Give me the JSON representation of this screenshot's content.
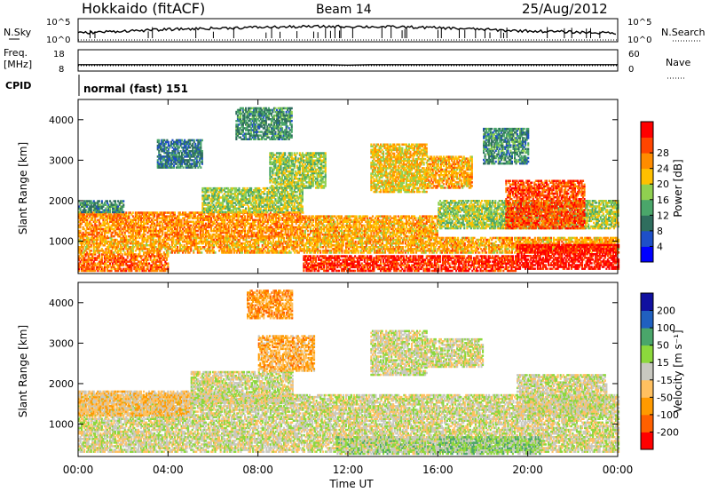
{
  "header": {
    "station": "Hokkaido (fitACF)",
    "beam": "Beam 14",
    "date": "25/Aug/2012"
  },
  "strips": {
    "nsky_label": "N.Sky",
    "nsearch_label": "N.Search",
    "nsky_ticks": [
      "10^5",
      "10^0"
    ],
    "nsearch_ticks": [
      "10^5",
      "10^0"
    ],
    "freq_label_1": "Freq.",
    "freq_label_2": "[MHz]",
    "freq_ticks": [
      "18",
      "8"
    ],
    "nave_label": "Nave",
    "nave_ticks": [
      "60",
      "0"
    ],
    "cpid_label": "CPID",
    "cpid_value": "normal (fast) 151"
  },
  "colors": {
    "power": [
      "#0000ff",
      "#1e4fc8",
      "#2f6e5e",
      "#4aa66a",
      "#90d050",
      "#ffc000",
      "#ff8c00",
      "#ff4500",
      "#ff0000"
    ],
    "velocity": [
      "#ff0000",
      "#ff6000",
      "#ff9a00",
      "#ffc060",
      "#c8c8c0",
      "#8cd83c",
      "#4aa66a",
      "#2060c0",
      "#1010a0"
    ]
  },
  "chart_data": [
    {
      "type": "heatmap",
      "name": "power",
      "xlabel": "Time UT",
      "ylabel": "Slant Range [km]",
      "xlim": [
        0,
        24
      ],
      "ylim": [
        200,
        4500
      ],
      "x_ticks": [
        "00:00",
        "04:00",
        "08:00",
        "12:00",
        "16:00",
        "20:00",
        "00:00"
      ],
      "y_ticks": [
        "1000",
        "2000",
        "3000",
        "4000"
      ],
      "colorbar_label": "Power [dB]",
      "colorbar_ticks": [
        "4",
        "8",
        "12",
        "16",
        "20",
        "24",
        "28"
      ],
      "regions": [
        {
          "t0": 0.0,
          "t1": 4.0,
          "r0": 250,
          "r1": 700,
          "level": 6.5
        },
        {
          "t0": 0.0,
          "t1": 24.0,
          "r0": 700,
          "r1": 1100,
          "level": 5.5
        },
        {
          "t0": 0.0,
          "t1": 10.0,
          "r0": 1100,
          "r1": 1700,
          "level": 6.0
        },
        {
          "t0": 10.0,
          "t1": 19.5,
          "r0": 250,
          "r1": 650,
          "level": 7.5
        },
        {
          "t0": 10.0,
          "t1": 16.0,
          "r0": 1100,
          "r1": 1600,
          "level": 5.5
        },
        {
          "t0": 16.0,
          "t1": 24.0,
          "r0": 1300,
          "r1": 2000,
          "level": 4.0
        },
        {
          "t0": 19.5,
          "t1": 24.0,
          "r0": 300,
          "r1": 900,
          "level": 8.0
        },
        {
          "t0": 0.0,
          "t1": 2.0,
          "r0": 1700,
          "r1": 2000,
          "level": 2.5
        },
        {
          "t0": 5.5,
          "t1": 10.0,
          "r0": 1700,
          "r1": 2300,
          "level": 4.0
        },
        {
          "t0": 8.5,
          "t1": 11.0,
          "r0": 2300,
          "r1": 3200,
          "level": 4.0
        },
        {
          "t0": 7.0,
          "t1": 9.5,
          "r0": 3500,
          "r1": 4300,
          "level": 2.5
        },
        {
          "t0": 13.0,
          "t1": 15.5,
          "r0": 2200,
          "r1": 3400,
          "level": 5.0
        },
        {
          "t0": 15.5,
          "t1": 17.5,
          "r0": 2300,
          "r1": 3100,
          "level": 5.5
        },
        {
          "t0": 19.0,
          "t1": 22.5,
          "r0": 1300,
          "r1": 2500,
          "level": 7.0
        },
        {
          "t0": 3.5,
          "t1": 5.5,
          "r0": 2800,
          "r1": 3500,
          "level": 2.0
        },
        {
          "t0": 18.0,
          "t1": 20.0,
          "r0": 2900,
          "r1": 3800,
          "level": 2.5
        }
      ]
    },
    {
      "type": "heatmap",
      "name": "velocity",
      "xlabel": "Time UT",
      "ylabel": "Slant Range [km]",
      "xlim": [
        0,
        24
      ],
      "ylim": [
        200,
        4500
      ],
      "x_ticks": [
        "00:00",
        "04:00",
        "08:00",
        "12:00",
        "16:00",
        "20:00",
        "00:00"
      ],
      "y_ticks": [
        "1000",
        "2000",
        "3000",
        "4000"
      ],
      "colorbar_label": "Velocity [m s⁻¹]",
      "colorbar_ticks": [
        "200",
        "100",
        "50",
        "15",
        "-15",
        "-50",
        "-100",
        "-200"
      ],
      "regions": [
        {
          "t0": 0.0,
          "t1": 24.0,
          "r0": 300,
          "r1": 1700,
          "level": 4.0
        },
        {
          "t0": 0.0,
          "t1": 5.0,
          "r0": 1200,
          "r1": 1800,
          "level": 3.0
        },
        {
          "t0": 5.0,
          "t1": 9.5,
          "r0": 1500,
          "r1": 2300,
          "level": 4.0
        },
        {
          "t0": 8.0,
          "t1": 10.5,
          "r0": 2300,
          "r1": 3200,
          "level": 2.5
        },
        {
          "t0": 7.5,
          "t1": 9.5,
          "r0": 3600,
          "r1": 4300,
          "level": 2.0
        },
        {
          "t0": 13.0,
          "t1": 15.5,
          "r0": 2200,
          "r1": 3300,
          "level": 4.0
        },
        {
          "t0": 15.5,
          "t1": 18.0,
          "r0": 2400,
          "r1": 3100,
          "level": 4.0
        },
        {
          "t0": 16.0,
          "t1": 20.5,
          "r0": 250,
          "r1": 700,
          "level": 5.0
        },
        {
          "t0": 19.5,
          "t1": 23.5,
          "r0": 1200,
          "r1": 2200,
          "level": 4.0
        },
        {
          "t0": 11.5,
          "t1": 16.0,
          "r0": 250,
          "r1": 700,
          "level": 4.5
        }
      ]
    }
  ],
  "strip_series": {
    "nsky_nsearch": [
      0.35,
      0.45,
      0.55,
      0.6,
      0.7,
      0.75,
      0.8,
      0.85,
      0.9,
      0.92,
      0.95,
      0.97,
      0.97,
      0.95,
      0.93,
      0.9,
      0.85,
      0.78,
      0.7,
      0.6,
      0.55,
      0.5,
      0.45,
      0.4,
      0.35
    ],
    "freq": [
      11.0,
      11.0,
      11.0,
      11.0,
      11.0,
      11.0,
      11.0,
      11.0,
      11.0,
      11.0,
      11.0,
      11.0,
      10.8,
      11.0,
      11.0,
      11.0,
      11.0,
      11.0,
      11.0,
      11.0,
      11.0,
      11.0,
      11.0,
      11.0,
      11.0
    ],
    "nave": [
      15,
      15,
      15,
      15,
      15,
      15,
      15,
      15,
      15,
      15,
      15,
      15,
      15,
      15,
      15,
      15,
      15,
      15,
      15,
      15,
      15,
      15,
      15,
      15,
      15
    ]
  }
}
